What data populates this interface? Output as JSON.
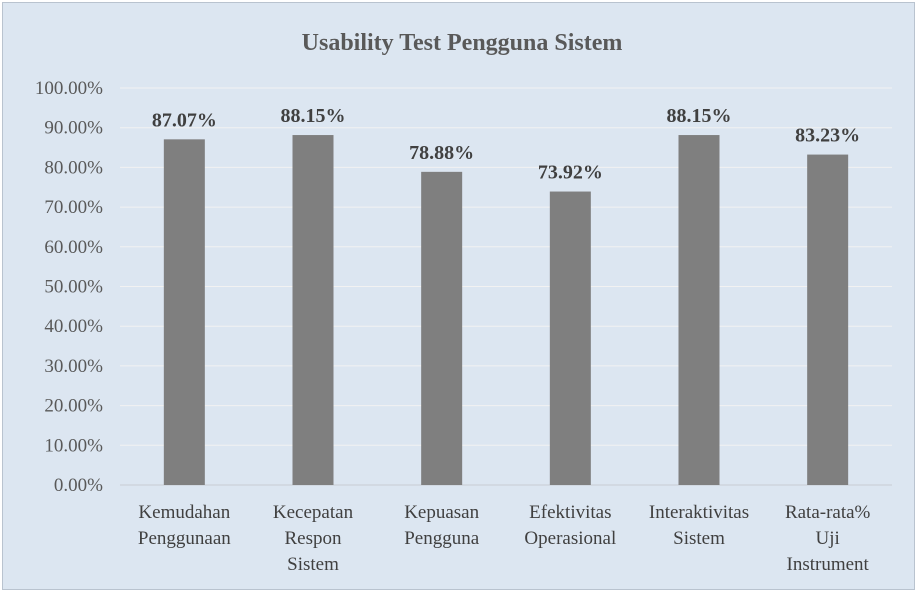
{
  "chart_data": {
    "type": "bar",
    "title": "Usability Test Pengguna Sistem",
    "xlabel": "",
    "ylabel": "",
    "categories": [
      [
        "Kemudahan",
        "Penggunaan"
      ],
      [
        "Kecepatan",
        "Respon",
        "Sistem"
      ],
      [
        "Kepuasan",
        "Pengguna"
      ],
      [
        "Efektivitas",
        "Operasional"
      ],
      [
        "Interaktivitas",
        "Sistem"
      ],
      [
        "Rata-rata%",
        "Uji",
        "Instrument"
      ]
    ],
    "values": [
      87.07,
      88.15,
      78.88,
      73.92,
      88.15,
      83.23
    ],
    "data_labels": [
      "87.07%",
      "88.15%",
      "78.88%",
      "73.92%",
      "88.15%",
      "83.23%"
    ],
    "ylim": [
      0,
      100
    ],
    "y_ticks": [
      "0.00%",
      "10.00%",
      "20.00%",
      "30.00%",
      "40.00%",
      "50.00%",
      "60.00%",
      "70.00%",
      "80.00%",
      "90.00%",
      "100.00%"
    ],
    "grid": true,
    "legend": "none",
    "colors": {
      "bar": "#7f7f7f",
      "background": "#dce6f1",
      "gridline": "#f2f2f2"
    }
  }
}
